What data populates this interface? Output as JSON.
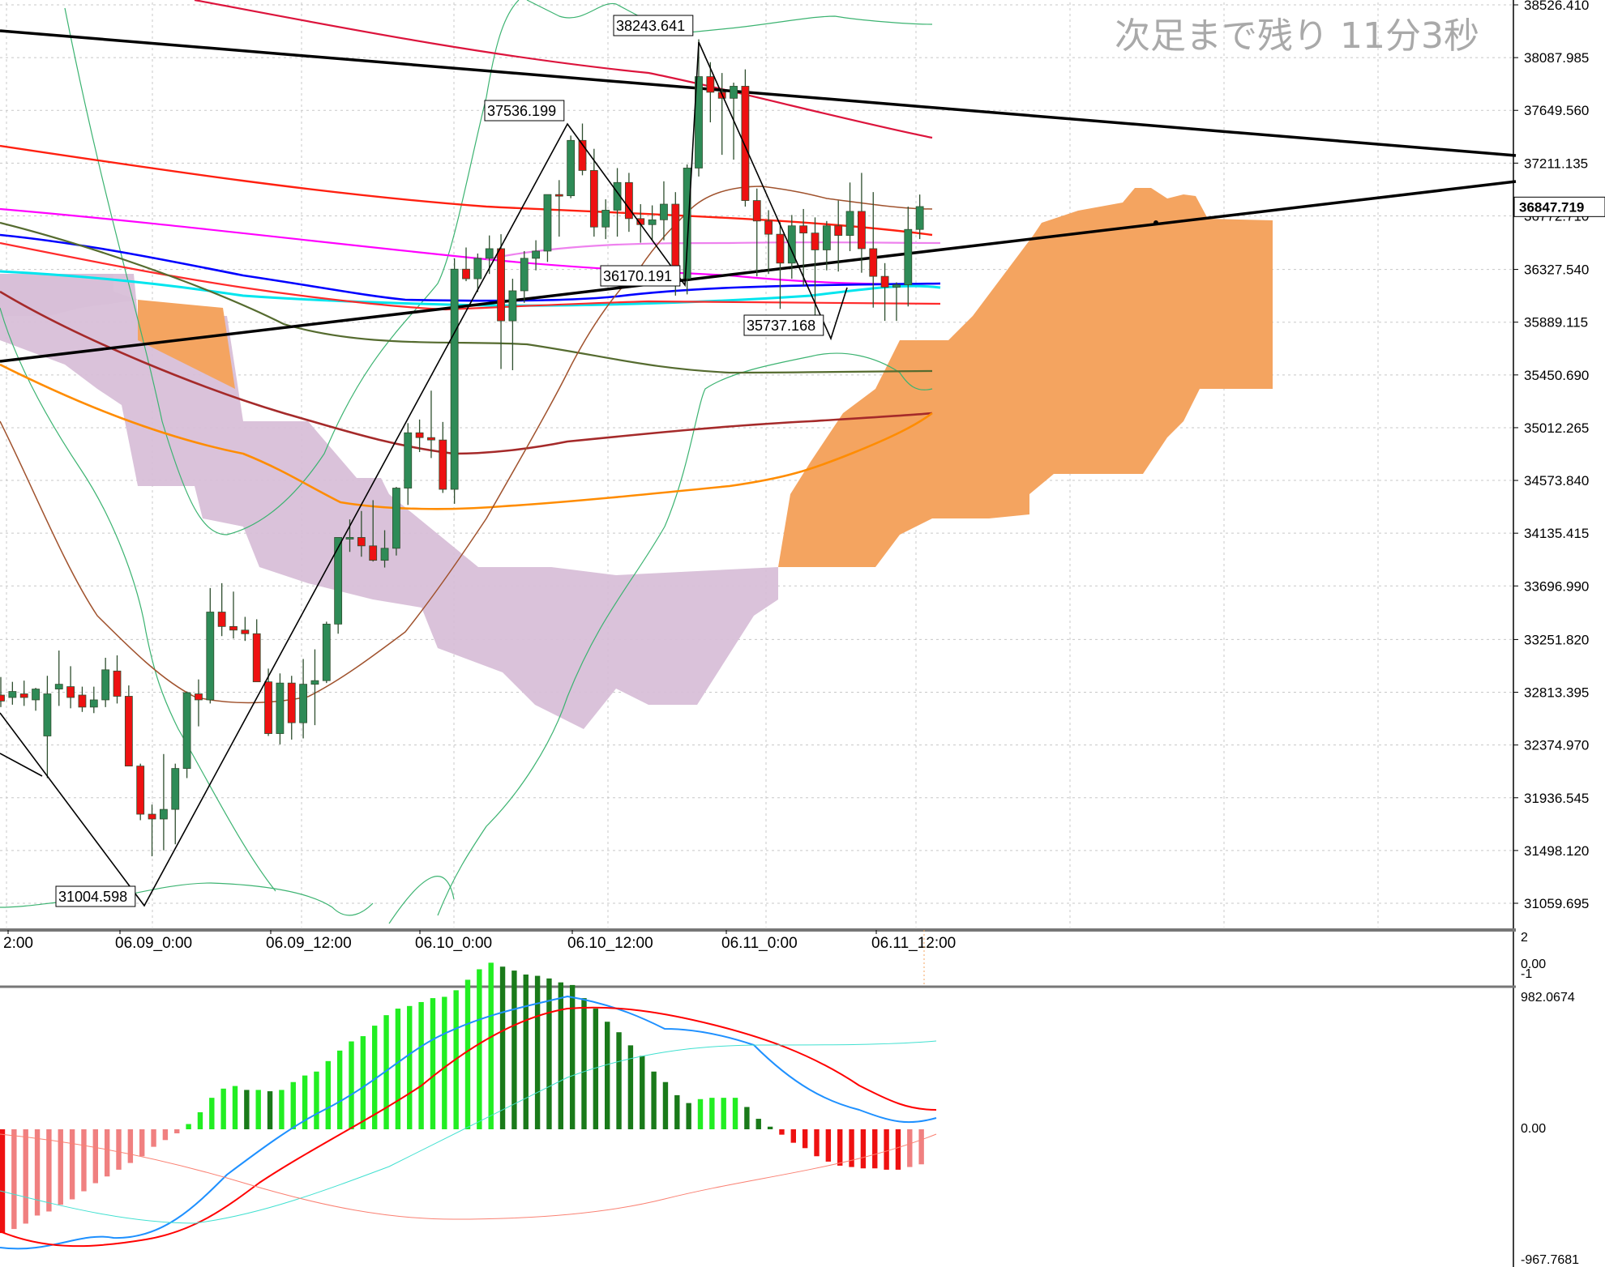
{
  "timer_text": "次足まで残り 11分3秒",
  "colors": {
    "bull": "#2e8b57",
    "bear": "#ee1111",
    "cloud_bull": "#f4a460",
    "cloud_bear": "#d8bfd8",
    "macd_pos_up": "#22ee22",
    "macd_pos_down": "#1a7a1a",
    "macd_neg_down": "#ee1111",
    "macd_neg_up": "#f08080"
  },
  "chart_data": {
    "type": "candlestick",
    "price_axis": {
      "ticks": [
        "38526.410",
        "38087.985",
        "37649.560",
        "37211.135",
        "36772.710",
        "36327.540",
        "35889.115",
        "35450.690",
        "35012.265",
        "34573.840",
        "34135.415",
        "33696.990",
        "33251.820",
        "32813.395",
        "32374.970",
        "31936.545",
        "31498.120",
        "31059.695"
      ],
      "current_price": "36847.719",
      "ylim": [
        30900,
        38560
      ]
    },
    "time_axis": {
      "labels": [
        "2:00",
        "06.09_0:00",
        "06.09_12:00",
        "06.10_0:00",
        "06.10_12:00",
        "06.11_0:00",
        "06.11_12:00"
      ]
    },
    "candles_ohlc": [
      [
        32790,
        32940,
        32690,
        32740
      ],
      [
        32770,
        32900,
        32710,
        32820
      ],
      [
        32800,
        32910,
        32700,
        32770
      ],
      [
        32750,
        32850,
        32660,
        32840
      ],
      [
        32450,
        32950,
        32100,
        32800
      ],
      [
        32840,
        33160,
        32700,
        32880
      ],
      [
        32860,
        33030,
        32680,
        32770
      ],
      [
        32790,
        32860,
        32650,
        32690
      ],
      [
        32690,
        32860,
        32640,
        32750
      ],
      [
        32750,
        33100,
        32690,
        33000
      ],
      [
        32990,
        33120,
        32720,
        32780
      ],
      [
        32780,
        32870,
        32200,
        32200
      ],
      [
        32200,
        32220,
        31750,
        31800
      ],
      [
        31800,
        31880,
        31450,
        31760
      ],
      [
        31760,
        32300,
        31500,
        31840
      ],
      [
        31840,
        32220,
        31550,
        32180
      ],
      [
        32180,
        32820,
        32100,
        32810
      ],
      [
        32800,
        32920,
        32530,
        32750
      ],
      [
        32750,
        33680,
        32720,
        33480
      ],
      [
        33480,
        33720,
        33280,
        33360
      ],
      [
        33360,
        33650,
        33260,
        33330
      ],
      [
        33330,
        33440,
        33240,
        33300
      ],
      [
        33300,
        33420,
        32900,
        32900
      ],
      [
        32900,
        33010,
        32450,
        32470
      ],
      [
        32470,
        32970,
        32380,
        32890
      ],
      [
        32890,
        32950,
        32420,
        32560
      ],
      [
        32560,
        33090,
        32430,
        32880
      ],
      [
        32880,
        33170,
        32540,
        32910
      ],
      [
        32910,
        33400,
        32890,
        33380
      ],
      [
        33380,
        33990,
        33300,
        34100
      ],
      [
        34100,
        34250,
        33980,
        34100
      ],
      [
        34100,
        34320,
        33940,
        34030
      ],
      [
        34030,
        34410,
        33900,
        33910
      ],
      [
        33910,
        34160,
        33850,
        34010
      ],
      [
        34010,
        34520,
        33950,
        34510
      ],
      [
        34510,
        35050,
        34370,
        34970
      ],
      [
        34970,
        35080,
        34810,
        34930
      ],
      [
        34930,
        35320,
        34760,
        34910
      ],
      [
        34910,
        35060,
        34470,
        34500
      ],
      [
        34500,
        36420,
        34380,
        36330
      ],
      [
        36330,
        36510,
        36230,
        36250
      ],
      [
        36250,
        36460,
        36140,
        36420
      ],
      [
        36420,
        36610,
        36290,
        36500
      ],
      [
        36500,
        36620,
        35500,
        35900
      ],
      [
        35900,
        36250,
        35490,
        36150
      ],
      [
        36150,
        36480,
        36050,
        36420
      ],
      [
        36420,
        36570,
        36320,
        36480
      ],
      [
        36480,
        36950,
        36390,
        36950
      ],
      [
        36950,
        37070,
        36600,
        36940
      ],
      [
        36940,
        37440,
        36920,
        37400
      ],
      [
        37400,
        37540,
        37110,
        37150
      ],
      [
        37150,
        37330,
        36600,
        36680
      ],
      [
        36680,
        36910,
        36580,
        36820
      ],
      [
        36820,
        37170,
        36600,
        37050
      ],
      [
        37050,
        37130,
        36640,
        36750
      ],
      [
        36750,
        36870,
        36550,
        36700
      ],
      [
        36700,
        36860,
        36570,
        36740
      ],
      [
        36740,
        37060,
        36570,
        36870
      ],
      [
        36870,
        36970,
        36110,
        36250
      ],
      [
        36250,
        37200,
        36120,
        37170
      ],
      [
        37170,
        38240,
        37100,
        37930
      ],
      [
        37930,
        38050,
        37550,
        37800
      ],
      [
        37800,
        37960,
        37280,
        37750
      ],
      [
        37750,
        37880,
        37240,
        37850
      ],
      [
        37850,
        37990,
        36850,
        36900
      ],
      [
        36900,
        37000,
        36270,
        36730
      ],
      [
        36730,
        36820,
        36290,
        36620
      ],
      [
        36620,
        36720,
        36000,
        36380
      ],
      [
        36380,
        36780,
        36250,
        36690
      ],
      [
        36690,
        36830,
        36190,
        36630
      ],
      [
        36630,
        36760,
        35940,
        36490
      ],
      [
        36490,
        36730,
        36320,
        36690
      ],
      [
        36690,
        36900,
        36310,
        36610
      ],
      [
        36610,
        37050,
        36480,
        36810
      ],
      [
        36810,
        37130,
        36300,
        36500
      ],
      [
        36500,
        36970,
        36010,
        36270
      ],
      [
        36270,
        36380,
        35900,
        36180
      ],
      [
        36180,
        36220,
        35900,
        36200
      ],
      [
        36200,
        36850,
        36020,
        36660
      ],
      [
        36660,
        36950,
        36580,
        36850
      ]
    ],
    "zigzag_labels": [
      "38243.641",
      "37536.199",
      "36170.191",
      "35737.168",
      "31004.598"
    ],
    "oscillator_axis": [
      "2",
      "0.00",
      "-1"
    ],
    "macd_axis": [
      "982.0674",
      "0.00",
      "-967.7681"
    ],
    "macd_histogram": [
      -770,
      -740,
      -700,
      -640,
      -610,
      -560,
      -520,
      -460,
      -400,
      -350,
      -300,
      -250,
      -200,
      -130,
      -80,
      -30,
      40,
      130,
      240,
      310,
      330,
      300,
      300,
      290,
      300,
      360,
      410,
      440,
      520,
      600,
      670,
      710,
      790,
      870,
      920,
      940,
      970,
      1000,
      1010,
      1060,
      1140,
      1220,
      1270,
      1240,
      1210,
      1180,
      1170,
      1150,
      1120,
      1100,
      1000,
      920,
      820,
      740,
      640,
      560,
      440,
      360,
      260,
      200,
      230,
      240,
      240,
      240,
      170,
      80,
      20,
      -40,
      -100,
      -140,
      -200,
      -240,
      -270,
      -280,
      -290,
      -290,
      -300,
      -300,
      -280,
      -260
    ]
  }
}
